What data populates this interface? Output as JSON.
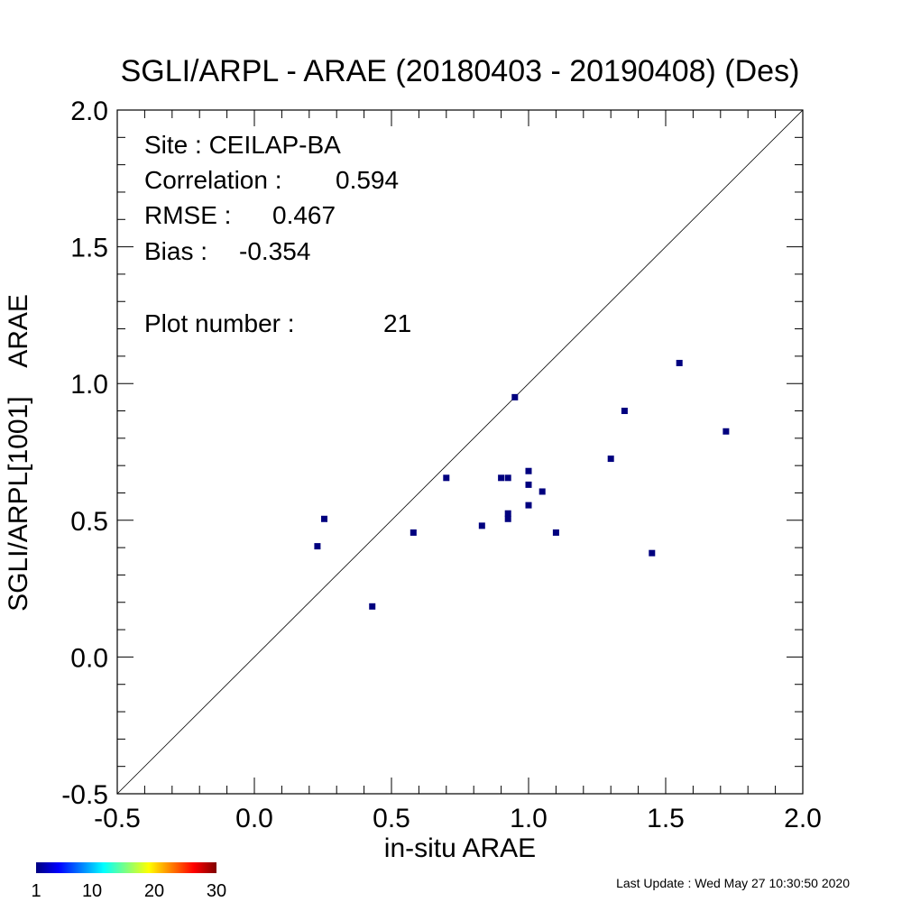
{
  "chart_data": {
    "type": "scatter",
    "title": "SGLI/ARPL - ARAE (20180403 - 20190408) (Des)",
    "xlabel": "in-situ ARAE",
    "ylabel": "SGLI/ARPL[1001]    ARAE",
    "xlim": [
      -0.5,
      2.0
    ],
    "ylim": [
      -0.5,
      2.0
    ],
    "x_ticks": [
      "-0.5",
      "0.0",
      "0.5",
      "1.0",
      "1.5",
      "2.0"
    ],
    "y_ticks": [
      "-0.5",
      "0.0",
      "0.5",
      "1.0",
      "1.5",
      "2.0"
    ],
    "x_tick_values": [
      -0.5,
      0.0,
      0.5,
      1.0,
      1.5,
      2.0
    ],
    "y_tick_values": [
      -0.5,
      0.0,
      0.5,
      1.0,
      1.5,
      2.0
    ],
    "reference_line": "1:1",
    "point_color": "#00007f",
    "points": [
      {
        "x": 0.23,
        "y": 0.405
      },
      {
        "x": 0.255,
        "y": 0.505
      },
      {
        "x": 0.43,
        "y": 0.185
      },
      {
        "x": 0.58,
        "y": 0.455
      },
      {
        "x": 0.7,
        "y": 0.655
      },
      {
        "x": 0.83,
        "y": 0.48
      },
      {
        "x": 0.9,
        "y": 0.655
      },
      {
        "x": 0.925,
        "y": 0.655
      },
      {
        "x": 0.925,
        "y": 0.525
      },
      {
        "x": 0.925,
        "y": 0.505
      },
      {
        "x": 0.95,
        "y": 0.95
      },
      {
        "x": 1.0,
        "y": 0.68
      },
      {
        "x": 1.0,
        "y": 0.63
      },
      {
        "x": 1.0,
        "y": 0.555
      },
      {
        "x": 1.05,
        "y": 0.605
      },
      {
        "x": 1.1,
        "y": 0.455
      },
      {
        "x": 1.3,
        "y": 0.725
      },
      {
        "x": 1.35,
        "y": 0.9
      },
      {
        "x": 1.45,
        "y": 0.38
      },
      {
        "x": 1.55,
        "y": 1.075
      },
      {
        "x": 1.72,
        "y": 0.825
      }
    ],
    "stats": {
      "site": "Site : CEILAP-BA",
      "correlation_label": "Correlation :",
      "correlation": "0.594",
      "rmse_label": "RMSE :",
      "rmse": "0.467",
      "bias_label": "Bias :",
      "bias": "-0.354",
      "plot_number_label": "Plot number :",
      "plot_number": "21"
    },
    "colorbar": {
      "labels": [
        "1",
        "10",
        "20",
        "30"
      ],
      "label_values": [
        1,
        10,
        20,
        30
      ],
      "range": [
        1,
        30
      ],
      "colors": [
        "#00007f",
        "#0000ff",
        "#007fff",
        "#00ffff",
        "#7fff7f",
        "#ffff00",
        "#ff7f00",
        "#ff0000",
        "#7f0000"
      ]
    }
  },
  "footer": {
    "last_update": "Last Update : Wed May 27 10:30:50 2020"
  }
}
